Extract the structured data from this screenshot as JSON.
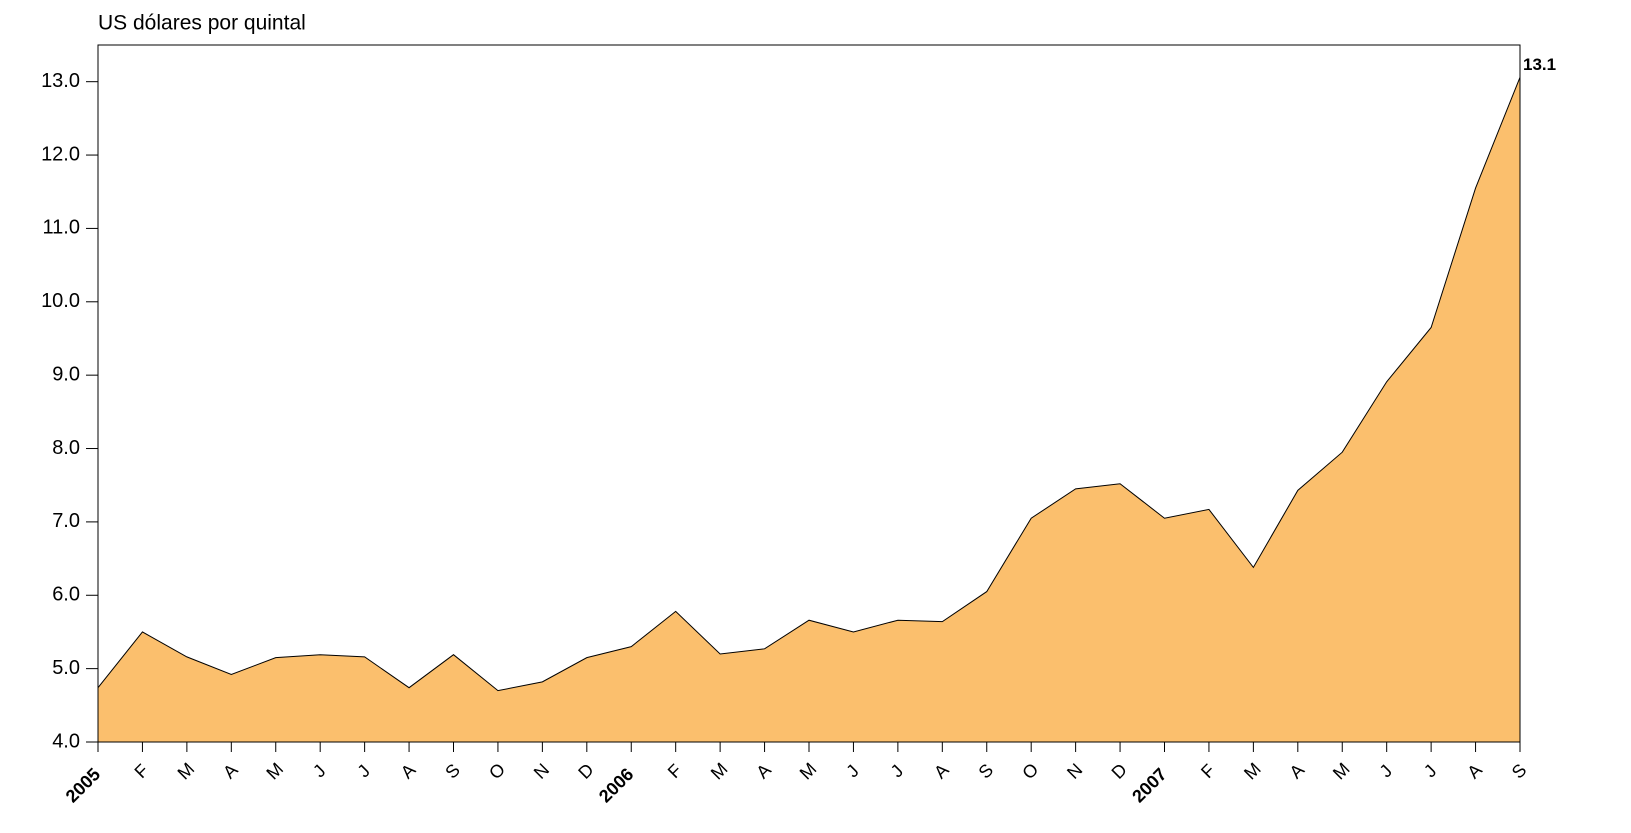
{
  "chart_data": {
    "type": "area",
    "title": "US dólares por quintal",
    "categories": [
      "2005",
      "F",
      "M",
      "A",
      "M",
      "J",
      "J",
      "A",
      "S",
      "O",
      "N",
      "D",
      "2006",
      "F",
      "M",
      "A",
      "M",
      "J",
      "J",
      "A",
      "S",
      "O",
      "N",
      "D",
      "2007",
      "F",
      "M",
      "A",
      "M",
      "J",
      "J",
      "A",
      "S"
    ],
    "values": [
      4.74,
      5.5,
      5.16,
      4.92,
      5.15,
      5.19,
      5.16,
      4.74,
      5.19,
      4.7,
      4.82,
      5.15,
      5.3,
      5.78,
      5.2,
      5.27,
      5.66,
      5.5,
      5.66,
      5.64,
      6.05,
      7.05,
      7.45,
      7.52,
      7.05,
      7.17,
      6.38,
      7.43,
      7.95,
      8.91,
      9.65,
      11.55,
      13.06
    ],
    "value_labels": [
      null,
      null,
      null,
      null,
      null,
      null,
      null,
      null,
      null,
      null,
      null,
      null,
      null,
      null,
      null,
      null,
      null,
      null,
      null,
      null,
      null,
      null,
      null,
      null,
      null,
      null,
      null,
      null,
      null,
      null,
      null,
      null,
      "13.1"
    ],
    "color": "#fbbf6d",
    "ylim": [
      4,
      13.5
    ],
    "yticks": [
      {
        "value": 4,
        "label": "4.0"
      },
      {
        "value": 5,
        "label": "5.0"
      },
      {
        "value": 6,
        "label": "6.0"
      },
      {
        "value": 7,
        "label": "7.0"
      },
      {
        "value": 8,
        "label": "8.0"
      },
      {
        "value": 9,
        "label": "9.0"
      },
      {
        "value": 10,
        "label": "10.0"
      },
      {
        "value": 11,
        "label": "11.0"
      },
      {
        "value": 12,
        "label": "12.0"
      },
      {
        "value": 13,
        "label": "13.0"
      }
    ],
    "grid": false
  }
}
